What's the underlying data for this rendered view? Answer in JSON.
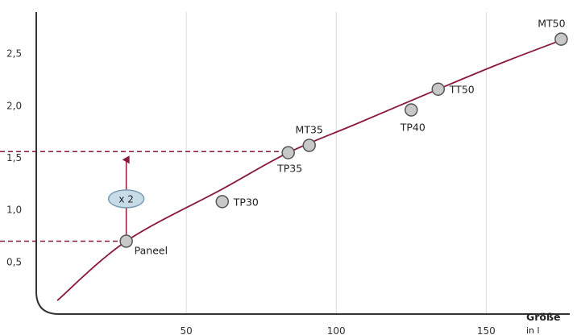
{
  "chart_data": {
    "type": "scatter",
    "xlabel": "Größe",
    "xunit": "in l",
    "ylabel": "",
    "xlim": [
      0,
      180
    ],
    "ylim": [
      0,
      2.9
    ],
    "x_ticks": [
      50,
      100,
      150
    ],
    "y_ticks": [
      0.5,
      1.0,
      1.5,
      2.0,
      2.5
    ],
    "x_tick_labels": [
      "50",
      "100",
      "150"
    ],
    "y_tick_labels": [
      "0,5",
      "1,0",
      "1,5",
      "2,0",
      "2,5"
    ],
    "grid": "vertical",
    "colors": {
      "curve": "#8b1a3a",
      "marker_fill": "#c8c8c8",
      "marker_stroke": "#555555",
      "badge_fill": "#c8dce8",
      "badge_stroke": "#7a9cb2",
      "axis": "#333333",
      "grid": "#d9d9d9"
    },
    "points": [
      {
        "label": "Paneel",
        "x": 30,
        "y": 0.7
      },
      {
        "label": "TP30",
        "x": 62,
        "y": 1.08
      },
      {
        "label": "TP35",
        "x": 84,
        "y": 1.55
      },
      {
        "label": "MT35",
        "x": 91,
        "y": 1.62
      },
      {
        "label": "TP40",
        "x": 125,
        "y": 1.96
      },
      {
        "label": "TT50",
        "x": 134,
        "y": 2.16
      },
      {
        "label": "MT50",
        "x": 175,
        "y": 2.64
      }
    ],
    "curve": [
      [
        7,
        0.13
      ],
      [
        30,
        0.7
      ],
      [
        62,
        1.2
      ],
      [
        84,
        1.55
      ],
      [
        107,
        1.83
      ],
      [
        134,
        2.16
      ],
      [
        155,
        2.41
      ],
      [
        175,
        2.63
      ]
    ],
    "annotation": {
      "label": "x 2",
      "x": 30,
      "y_from": 0.7,
      "y_to": 1.56,
      "guide_x_end": 84
    }
  }
}
